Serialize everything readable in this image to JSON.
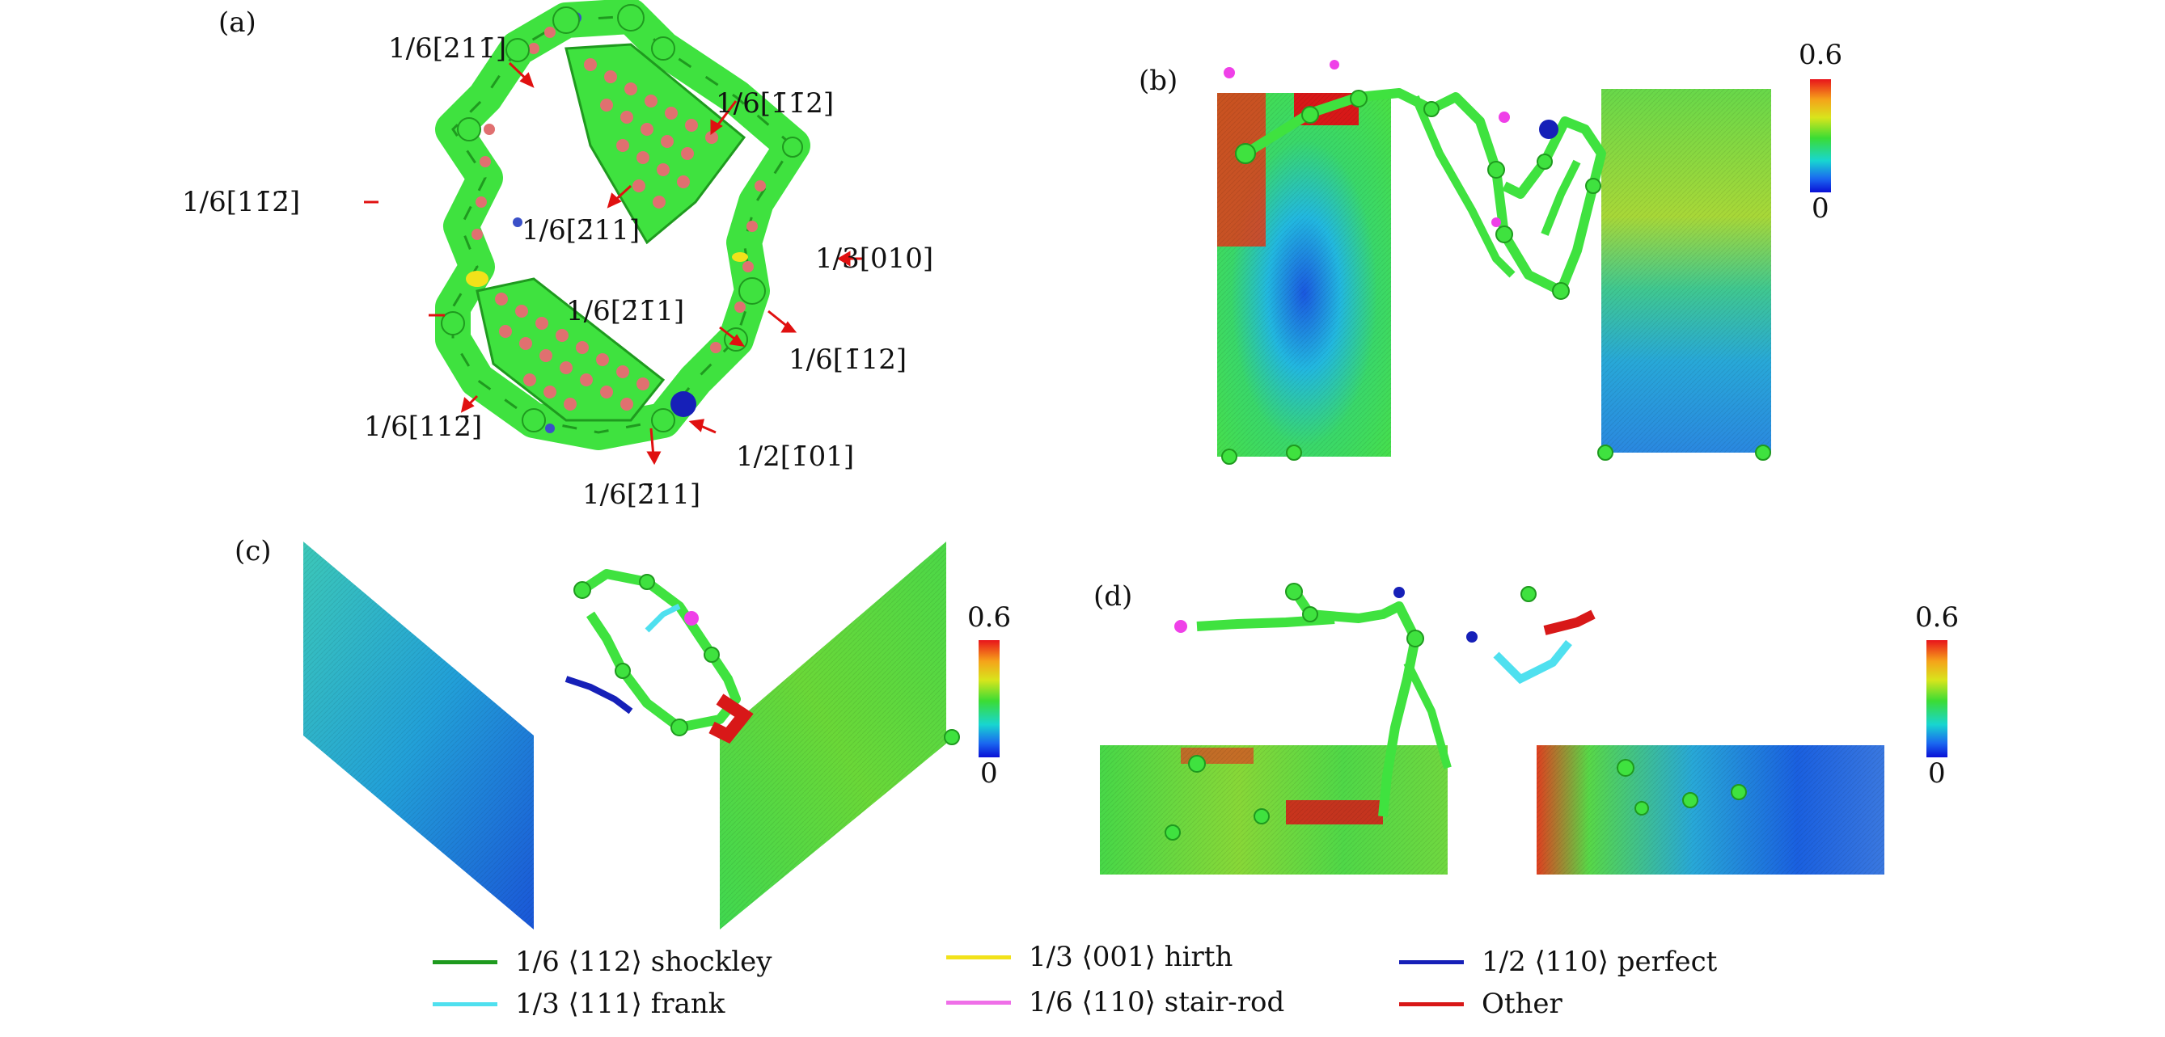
{
  "panel_labels": {
    "a": "(a)",
    "b": "(b)",
    "c": "(c)",
    "d": "(d)"
  },
  "panel_a": {
    "annotations": [
      {
        "id": "ann-211bar",
        "text": "1/6[211̄]"
      },
      {
        "id": "ann-1bar1bar2",
        "text": "1/6[1̄1̄2]"
      },
      {
        "id": "ann-11bar2bar",
        "text": "1/6[11̄2̄]"
      },
      {
        "id": "ann-2bar11",
        "text": "1/6[2̄11]"
      },
      {
        "id": "ann-010",
        "text": "1/3[010]"
      },
      {
        "id": "ann-2bar1bar1",
        "text": "1/6[2̄1̄1]"
      },
      {
        "id": "ann-1bar12",
        "text": "1/6[1̄12]"
      },
      {
        "id": "ann-112bar",
        "text": "1/6[112̄]"
      },
      {
        "id": "ann-1bar01",
        "text": "1/2[1̄01]"
      },
      {
        "id": "ann-2bar11-bottom",
        "text": "1/6[2̄11]"
      }
    ]
  },
  "colorbar": {
    "max_label": "0.6",
    "min_label": "0"
  },
  "legend": {
    "items": [
      {
        "label": "1/6 ⟨112⟩ shockley",
        "color": "#1e9a1e"
      },
      {
        "label": "1/3 ⟨111⟩ frank",
        "color": "#4fe0ef"
      },
      {
        "label": "1/3 ⟨001⟩ hirth",
        "color": "#f2e21a"
      },
      {
        "label": "1/6 ⟨110⟩ stair-rod",
        "color": "#ef6fe8"
      },
      {
        "label": "1/2 ⟨110⟩ perfect",
        "color": "#1620b8"
      },
      {
        "label": "Other",
        "color": "#d81818"
      }
    ]
  },
  "colors": {
    "dislocation_green": "#3fe23f",
    "atom_pink": "#e07070",
    "arrow_red": "#e01010"
  }
}
